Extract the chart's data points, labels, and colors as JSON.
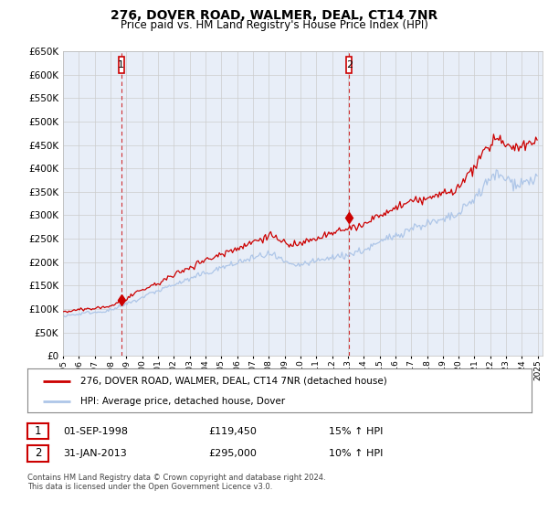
{
  "title": "276, DOVER ROAD, WALMER, DEAL, CT14 7NR",
  "subtitle": "Price paid vs. HM Land Registry's House Price Index (HPI)",
  "ylim": [
    0,
    650000
  ],
  "yticks": [
    0,
    50000,
    100000,
    150000,
    200000,
    250000,
    300000,
    350000,
    400000,
    450000,
    500000,
    550000,
    600000,
    650000
  ],
  "start_year": 1995,
  "end_year": 2025,
  "sale1_date": 1998.67,
  "sale1_price": 119450,
  "sale1_label": "1",
  "sale2_date": 2013.08,
  "sale2_price": 295000,
  "sale2_label": "2",
  "hpi_line_color": "#aec6e8",
  "price_line_color": "#cc0000",
  "vline_color": "#cc0000",
  "grid_color": "#cccccc",
  "background_color": "#ffffff",
  "plot_bg_color": "#e8eef8",
  "legend_label_price": "276, DOVER ROAD, WALMER, DEAL, CT14 7NR (detached house)",
  "legend_label_hpi": "HPI: Average price, detached house, Dover",
  "annotation1_date": "01-SEP-1998",
  "annotation1_price": "£119,450",
  "annotation1_hpi": "15% ↑ HPI",
  "annotation2_date": "31-JAN-2013",
  "annotation2_price": "£295,000",
  "annotation2_hpi": "10% ↑ HPI",
  "footer": "Contains HM Land Registry data © Crown copyright and database right 2024.\nThis data is licensed under the Open Government Licence v3.0."
}
